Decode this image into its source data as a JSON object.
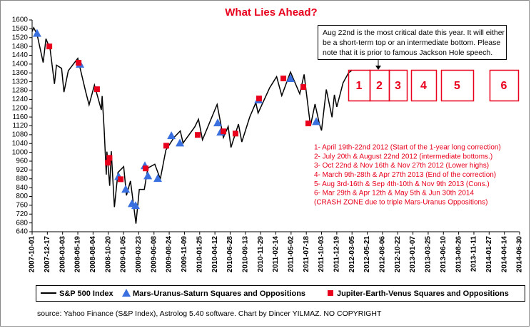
{
  "chart_data": {
    "type": "line",
    "title": "What Lies Ahead?",
    "source": "source: Yahoo Finance (S&P Index), Astrolog 5.40 software. Chart by Dincer YILMAZ. NO COPYRIGHT",
    "callout": [
      "Aug 22nd is the most critical date this year. It will either",
      "be a short-term top or an intermediate bottom. Please",
      "note that it is prior to  famous Jackson Hole speech."
    ],
    "period_labels": [
      "1",
      "2",
      "3",
      "4",
      "5",
      "6"
    ],
    "notes": [
      "1- April 19th-22nd 2012 (Start of the 1-year long correction)",
      "2- July 20th & August 22nd 2012 (intermediate bottoms.)",
      "3- Oct 22nd & Nov 16th & Nov 27th 2012 (Lower highs)",
      "4- March 9th-28th & Apr 27th 2013 (End of the correction)",
      "5- Aug 3rd-16th & Sep 4th-10th & Nov 9th 2013 (Cons.)",
      "6- Mar 29th & Apr 12th & May 5th & Jun 30th 2014",
      "(CRASH ZONE due to triple Mars-Uranus Oppositions)"
    ],
    "xlim": [
      "2007-10-01",
      "2014-06-30"
    ],
    "xticks": [
      "2007-10-01",
      "2007-12-17",
      "2008-03-03",
      "2008-05-19",
      "2008-08-04",
      "2008-10-20",
      "2009-01-05",
      "2009-03-23",
      "2009-06-08",
      "2009-08-24",
      "2009-11-09",
      "2010-01-25",
      "2010-04-12",
      "2010-06-28",
      "2010-09-13",
      "2010-11-29",
      "2011-02-14",
      "2011-05-02",
      "2011-07-18",
      "2011-10-03",
      "2011-12-19",
      "2012-03-05",
      "2012-05-21",
      "2012-08-06",
      "2012-10-22",
      "2013-01-07",
      "2013-03-25",
      "2013-06-10",
      "2013-08-26",
      "2013-11-11",
      "2014-01-27",
      "2014-04-14",
      "2014-06-30"
    ],
    "ylim": [
      640,
      1600
    ],
    "yticks": [
      640,
      680,
      720,
      760,
      800,
      840,
      880,
      920,
      960,
      1000,
      1040,
      1080,
      1120,
      1160,
      1200,
      1240,
      1280,
      1320,
      1360,
      1400,
      1440,
      1480,
      1520,
      1560,
      1600
    ],
    "grid": false,
    "series": [
      {
        "name": "S&P 500 Index",
        "type": "line",
        "color": "#000000",
        "x": [
          "2007-10-01",
          "2007-10-09",
          "2007-10-26",
          "2007-11-26",
          "2007-12-10",
          "2007-12-31",
          "2008-01-22",
          "2008-02-01",
          "2008-02-27",
          "2008-03-10",
          "2008-04-01",
          "2008-05-19",
          "2008-06-27",
          "2008-07-15",
          "2008-08-11",
          "2008-09-15",
          "2008-09-19",
          "2008-09-29",
          "2008-10-10",
          "2008-10-13",
          "2008-10-27",
          "2008-11-04",
          "2008-11-20",
          "2008-12-08",
          "2009-01-06",
          "2009-01-20",
          "2009-02-09",
          "2009-03-09",
          "2009-03-26",
          "2009-04-20",
          "2009-05-08",
          "2009-06-12",
          "2009-07-10",
          "2009-08-07",
          "2009-09-18",
          "2009-10-19",
          "2009-11-02",
          "2009-12-31",
          "2010-01-19",
          "2010-02-08",
          "2010-04-23",
          "2010-05-25",
          "2010-06-18",
          "2010-07-02",
          "2010-08-09",
          "2010-08-26",
          "2010-10-05",
          "2010-11-05",
          "2010-11-16",
          "2011-01-14",
          "2011-02-18",
          "2011-03-16",
          "2011-04-29",
          "2011-06-15",
          "2011-07-07",
          "2011-08-08",
          "2011-08-31",
          "2011-09-22",
          "2011-10-03",
          "2011-10-27",
          "2011-11-25",
          "2011-12-07",
          "2011-12-19",
          "2012-01-20",
          "2012-02-17",
          "2012-03-02"
        ],
        "values": [
          1547,
          1565,
          1535,
          1407,
          1515,
          1468,
          1310,
          1395,
          1381,
          1273,
          1370,
          1426,
          1278,
          1215,
          1305,
          1192,
          1255,
          1106,
          899,
          1003,
          848,
          1005,
          752,
          909,
          935,
          805,
          870,
          677,
          832,
          832,
          929,
          946,
          879,
          1010,
          1068,
          1097,
          1042,
          1115,
          1150,
          1057,
          1217,
          1067,
          1117,
          1022,
          1128,
          1047,
          1160,
          1225,
          1178,
          1293,
          1343,
          1257,
          1364,
          1265,
          1353,
          1119,
          1219,
          1129,
          1099,
          1285,
          1159,
          1261,
          1206,
          1315,
          1361,
          1370
        ]
      },
      {
        "name": "Mars-Uranus-Saturn Squares and Oppositions",
        "type": "scatter",
        "marker": "triangle",
        "color": "#3a6fe0",
        "x": [
          "2007-10-26",
          "2008-05-30",
          "2008-12-11",
          "2009-01-16",
          "2009-02-17",
          "2009-03-07",
          "2009-04-23",
          "2009-05-08",
          "2009-06-27",
          "2009-09-04",
          "2009-10-17",
          "2010-04-26",
          "2010-05-11",
          "2010-11-18",
          "2011-04-29",
          "2011-09-06"
        ],
        "values": [
          1540,
          1400,
          891,
          833,
          768,
          759,
          940,
          894,
          882,
          1076,
          1043,
          1134,
          1092,
          1238,
          1335,
          1140
        ]
      },
      {
        "name": "Jupiter-Earth-Venus Squares and Oppositions",
        "type": "scatter",
        "marker": "square",
        "color": "#e8001c",
        "x": [
          "2007-12-27",
          "2008-05-23",
          "2008-08-24",
          "2008-10-18",
          "2008-10-26",
          "2008-12-22",
          "2009-04-27",
          "2009-08-09",
          "2010-01-15",
          "2010-05-25",
          "2010-07-25",
          "2010-11-21",
          "2011-03-24",
          "2011-07-03",
          "2011-07-28"
        ],
        "values": [
          1480,
          1406,
          1286,
          953,
          975,
          878,
          927,
          1030,
          1079,
          1095,
          1085,
          1244,
          1335,
          1296,
          1131
        ]
      }
    ]
  }
}
